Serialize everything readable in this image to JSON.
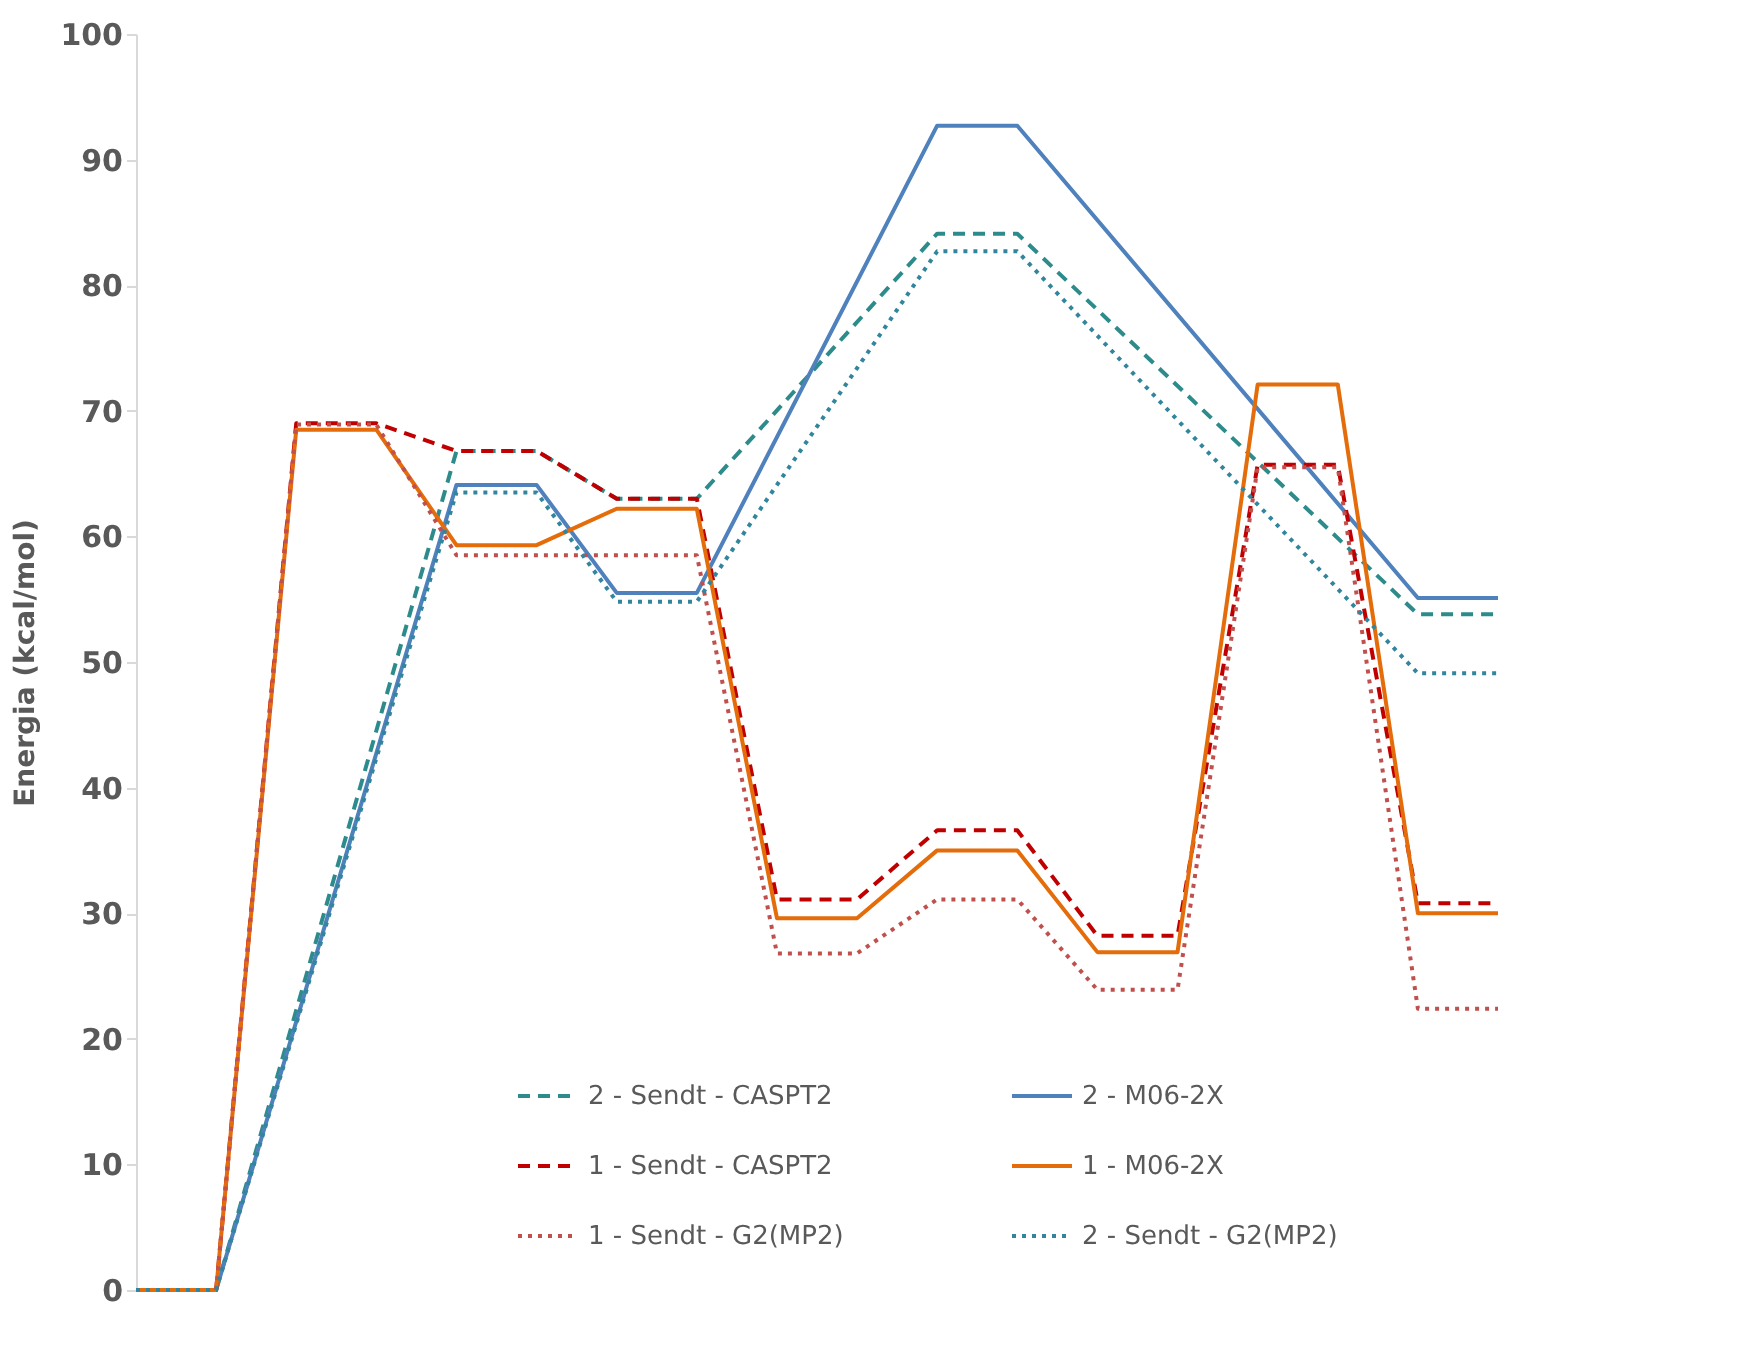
{
  "chart_data": {
    "type": "line",
    "ylabel": "Energia (kcal/mol)",
    "categories": [
      null,
      null,
      null,
      null,
      null,
      null,
      null,
      null,
      null,
      null,
      null,
      null,
      null,
      null,
      null,
      null,
      null,
      null
    ],
    "ylim": [
      0,
      100
    ],
    "yticks": [
      0,
      10,
      20,
      30,
      40,
      50,
      60,
      70,
      80,
      90,
      100
    ],
    "grid": false,
    "tick_labels": "y",
    "legend": "bottom",
    "marker": "none",
    "series": [
      {
        "name": "2 - Sendt - CASPT2",
        "color": "#2e8b8b",
        "line_style": "dashed",
        "values": [
          0,
          0,
          null,
          null,
          66.8,
          66.8,
          63,
          63,
          null,
          null,
          84.1,
          84.1,
          null,
          null,
          null,
          null,
          53.8,
          53.8
        ]
      },
      {
        "name": "2 - M06-2X",
        "color": "#4f81bd",
        "line_style": "solid",
        "values": [
          0,
          0,
          null,
          null,
          64.1,
          64.1,
          55.5,
          55.5,
          null,
          null,
          92.7,
          92.7,
          null,
          null,
          null,
          null,
          55.1,
          55.1
        ]
      },
      {
        "name": "1 - Sendt - CASPT2",
        "color": "#c00000",
        "line_style": "dashed",
        "values": [
          0,
          0,
          69,
          69,
          66.8,
          66.8,
          63,
          63,
          31.1,
          31.1,
          36.6,
          36.6,
          28.2,
          28.2,
          65.7,
          65.7,
          30.8,
          30.8
        ]
      },
      {
        "name": "1 - M06-2X",
        "color": "#e46c0a",
        "line_style": "solid",
        "values": [
          0,
          0,
          68.5,
          68.5,
          59.3,
          59.3,
          62.2,
          62.2,
          29.6,
          29.6,
          35,
          35,
          26.9,
          26.9,
          72.1,
          72.1,
          30,
          30
        ]
      },
      {
        "name": "1 - Sendt - G2(MP2)",
        "color": "#c0504d",
        "line_style": "dotted",
        "values": [
          0,
          0,
          68.9,
          68.9,
          58.5,
          58.5,
          58.5,
          58.5,
          26.8,
          26.8,
          31.1,
          31.1,
          23.9,
          23.9,
          65.5,
          65.5,
          22.4,
          22.4
        ]
      },
      {
        "name": "2 - Sendt - G2(MP2)",
        "color": "#31859c",
        "line_style": "dotted",
        "values": [
          0,
          0,
          null,
          null,
          63.5,
          63.5,
          54.8,
          54.8,
          null,
          null,
          82.7,
          82.7,
          null,
          null,
          null,
          null,
          49.1,
          49.1
        ]
      }
    ]
  }
}
